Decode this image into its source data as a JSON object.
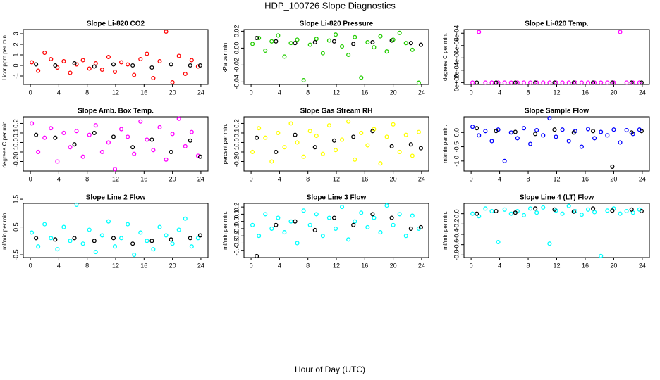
{
  "title": "HDP_100726  Slope Diagnostics",
  "x_label": "Hour of Day (UTC)",
  "chart_data": [
    {
      "type": "scatter",
      "title": "Slope Li-820 CO2",
      "y_label": "Licor ppm per min.",
      "xlim": [
        -1,
        25
      ],
      "xticks": [
        0,
        4,
        8,
        12,
        16,
        20,
        24
      ],
      "ylim": [
        -1.8,
        3.4
      ],
      "yticks": [
        -1,
        0,
        1,
        2,
        3
      ],
      "series": [
        {
          "color": "#ff0000",
          "x": [
            0.2,
            1.1,
            2.0,
            2.9,
            3.8,
            4.7,
            5.6,
            6.5,
            7.4,
            8.3,
            9.2,
            10.1,
            11.0,
            11.9,
            12.8,
            13.7,
            14.6,
            15.5,
            16.4,
            17.3,
            18.2,
            19.1,
            20.0,
            20.9,
            21.8,
            22.7,
            23.6
          ],
          "values": [
            0.3,
            -0.5,
            1.2,
            0.6,
            -0.2,
            0.4,
            -0.7,
            0.1,
            0.5,
            -0.3,
            0.2,
            -0.4,
            0.8,
            -0.6,
            0.3,
            0.1,
            -0.9,
            0.6,
            1.1,
            -1.2,
            0.4,
            3.2,
            -1.6,
            0.9,
            -0.8,
            0.5,
            -0.1
          ]
        },
        {
          "color": "#000000",
          "x": [
            0.8,
            3.5,
            6.2,
            9.0,
            11.7,
            14.4,
            17.1,
            19.8,
            22.5,
            23.9
          ],
          "values": [
            0.1,
            0.0,
            0.2,
            -0.1,
            0.1,
            0.0,
            -0.2,
            0.1,
            0.0,
            0.0
          ]
        }
      ]
    },
    {
      "type": "scatter",
      "title": "Slope Li-820 Pressure",
      "y_label": "kPa per min.",
      "xlim": [
        -1,
        25
      ],
      "xticks": [
        0,
        4,
        8,
        12,
        16,
        20,
        24
      ],
      "ylim": [
        -0.043,
        0.022
      ],
      "yticks": [
        -0.04,
        -0.02,
        {
          "value": 0,
          "label": "0.00"
        },
        0.02
      ],
      "series": [
        {
          "color": "#22cc00",
          "x": [
            0.2,
            1.1,
            2.0,
            2.9,
            3.8,
            4.7,
            5.6,
            6.5,
            7.4,
            8.3,
            9.2,
            10.1,
            11.0,
            11.9,
            12.8,
            13.7,
            14.6,
            15.5,
            16.4,
            17.3,
            18.2,
            19.1,
            20.0,
            20.9,
            21.8,
            22.7,
            23.6
          ],
          "values": [
            0.005,
            0.012,
            -0.003,
            0.008,
            0.015,
            -0.01,
            0.006,
            0.01,
            -0.038,
            0.004,
            0.011,
            -0.006,
            0.009,
            0.016,
            0.002,
            -0.008,
            0.013,
            -0.035,
            0.007,
            0.001,
            0.014,
            -0.004,
            0.01,
            0.018,
            0.006,
            -0.002,
            -0.041
          ]
        },
        {
          "color": "#000000",
          "x": [
            0.8,
            3.5,
            6.2,
            9.0,
            11.7,
            14.4,
            17.1,
            19.8,
            22.5,
            23.9
          ],
          "values": [
            0.012,
            0.008,
            0.006,
            0.007,
            0.008,
            0.005,
            0.007,
            0.009,
            0.006,
            0.004
          ]
        }
      ]
    },
    {
      "type": "scatter",
      "title": "Slope Li-820 Temp.",
      "y_label": "degrees C per min.",
      "xlim": [
        -1,
        25
      ],
      "xticks": [
        0,
        4,
        8,
        12,
        16,
        20,
        24
      ],
      "ylim": [
        -3e-05,
        0.00086
      ],
      "yticks": [
        {
          "value": 0,
          "label": "0e+00"
        },
        {
          "value": 0.0002,
          "label": "2e-04"
        },
        {
          "value": 0.0004,
          "label": "4e-04"
        },
        {
          "value": 0.0006,
          "label": "6e-04"
        },
        {
          "value": 0.0008,
          "label": "8e-04"
        }
      ],
      "series": [
        {
          "color": "#ff00ff",
          "x": [
            0.2,
            1.1,
            2.0,
            2.9,
            3.8,
            4.7,
            5.6,
            6.5,
            7.4,
            8.3,
            9.2,
            10.1,
            11.0,
            11.9,
            12.8,
            13.7,
            14.6,
            15.5,
            16.4,
            17.3,
            18.2,
            19.1,
            20.0,
            20.9,
            21.8,
            22.7,
            23.6
          ],
          "values": [
            0,
            0.00082,
            0,
            0,
            0,
            0,
            0,
            0,
            0,
            0,
            0,
            0,
            0,
            0,
            0,
            0,
            0,
            0,
            0,
            0,
            0,
            0,
            0,
            0.00082,
            0,
            0,
            0
          ]
        },
        {
          "color": "#000000",
          "x": [
            0.8,
            3.5,
            6.2,
            9.0,
            11.7,
            14.4,
            17.1,
            19.8,
            22.5,
            23.9
          ],
          "values": [
            0,
            0,
            0,
            0,
            0,
            0,
            0,
            0,
            0,
            0
          ]
        }
      ]
    },
    {
      "type": "scatter",
      "title": "Slope Amb. Box Temp.",
      "y_label": "degrees C per min.",
      "xlim": [
        -1,
        25
      ],
      "xticks": [
        0,
        4,
        8,
        12,
        16,
        20,
        24
      ],
      "ylim": [
        -0.3,
        0.27
      ],
      "yticks": [
        -0.2,
        -0.1,
        {
          "value": 0,
          "label": "0.0"
        },
        0.1,
        0.2
      ],
      "series": [
        {
          "color": "#ff00ff",
          "x": [
            0.2,
            1.1,
            2.0,
            2.9,
            3.8,
            4.7,
            5.6,
            6.5,
            7.4,
            8.3,
            9.2,
            10.1,
            11.0,
            11.9,
            12.8,
            13.7,
            14.6,
            15.5,
            16.4,
            17.3,
            18.2,
            19.1,
            20.0,
            20.9,
            21.8,
            22.7,
            23.6
          ],
          "values": [
            0.2,
            -0.1,
            0.05,
            0.15,
            -0.2,
            0.1,
            -0.05,
            0.12,
            -0.15,
            0.08,
            0.18,
            -0.1,
            0.0,
            -0.28,
            0.14,
            0.06,
            -0.12,
            0.22,
            0.03,
            -0.08,
            0.16,
            -0.18,
            0.09,
            0.25,
            -0.04,
            0.11,
            -0.14
          ]
        },
        {
          "color": "#000000",
          "x": [
            0.8,
            3.5,
            6.2,
            9.0,
            11.7,
            14.4,
            17.1,
            19.8,
            22.5,
            23.9
          ],
          "values": [
            0.08,
            0.05,
            -0.02,
            0.1,
            0.06,
            -0.05,
            0.03,
            -0.1,
            0.02,
            -0.15
          ]
        }
      ]
    },
    {
      "type": "scatter",
      "title": "Slope Gas Stream RH",
      "y_label": "percent per min.",
      "xlim": [
        -1,
        25
      ],
      "xticks": [
        0,
        4,
        8,
        12,
        16,
        20,
        24
      ],
      "ylim": [
        -0.3,
        0.27
      ],
      "yticks": [
        -0.2,
        -0.1,
        {
          "value": 0,
          "label": "0.0"
        },
        0.1,
        0.2
      ],
      "series": [
        {
          "color": "#ffff00",
          "x": [
            0.2,
            1.1,
            2.0,
            2.9,
            3.8,
            4.7,
            5.6,
            6.5,
            7.4,
            8.3,
            9.2,
            10.1,
            11.0,
            11.9,
            12.8,
            13.7,
            14.6,
            15.5,
            16.4,
            17.3,
            18.2,
            19.1,
            20.0,
            20.9,
            21.8,
            22.7,
            23.6
          ],
          "values": [
            -0.1,
            0.15,
            0.05,
            -0.2,
            0.1,
            -0.05,
            0.2,
            0.0,
            -0.15,
            0.12,
            0.07,
            -0.12,
            0.18,
            -0.08,
            0.03,
            0.22,
            -0.18,
            0.1,
            -0.03,
            0.14,
            -0.22,
            0.06,
            0.19,
            -0.1,
            0.08,
            -0.14,
            0.11
          ]
        },
        {
          "color": "#000000",
          "x": [
            0.8,
            3.5,
            6.2,
            9.0,
            11.7,
            14.4,
            17.1,
            19.8,
            22.5,
            23.9
          ],
          "values": [
            0.05,
            -0.1,
            0.08,
            -0.05,
            0.02,
            0.06,
            0.12,
            -0.04,
            -0.02,
            -0.06
          ]
        }
      ]
    },
    {
      "type": "scatter",
      "title": "Slope Sample Flow",
      "y_label": "ml/min per min.",
      "xlim": [
        -1,
        25
      ],
      "xticks": [
        0,
        4,
        8,
        12,
        16,
        20,
        24
      ],
      "ylim": [
        -1.35,
        0.55
      ],
      "yticks": [
        {
          "value": -1,
          "label": "-1.0"
        },
        -0.5,
        {
          "value": 0,
          "label": "0.0"
        }
      ],
      "series": [
        {
          "color": "#0000ff",
          "x": [
            0.2,
            1.1,
            2.0,
            2.9,
            3.8,
            4.7,
            5.6,
            6.5,
            7.4,
            8.3,
            9.2,
            10.1,
            11.0,
            11.9,
            12.8,
            13.7,
            14.6,
            15.5,
            16.4,
            17.3,
            18.2,
            19.1,
            20.0,
            20.9,
            21.8,
            22.7,
            23.6
          ],
          "values": [
            0.2,
            -0.1,
            0.05,
            -0.3,
            0.1,
            -1.0,
            0.0,
            -0.2,
            0.15,
            -0.4,
            0.08,
            -0.1,
            0.5,
            -0.15,
            0.1,
            -0.3,
            0.05,
            -0.5,
            0.12,
            -0.2,
            0.02,
            -0.1,
            0.1,
            -0.35,
            0.08,
            -0.05,
            0.1
          ]
        },
        {
          "color": "#000000",
          "x": [
            0.8,
            3.5,
            6.2,
            9.0,
            11.7,
            14.4,
            17.1,
            19.8,
            22.5,
            23.9
          ],
          "values": [
            0.15,
            0.05,
            0.02,
            -0.05,
            0.1,
            0.0,
            0.05,
            -1.2,
            0.0,
            0.05
          ]
        }
      ]
    },
    {
      "type": "scatter",
      "title": "Slope Line 2 Flow",
      "y_label": "ml/min per min.",
      "xlim": [
        -1,
        25
      ],
      "xticks": [
        0,
        4,
        8,
        12,
        16,
        20,
        24
      ],
      "ylim": [
        -0.6,
        1.35
      ],
      "yticks": [
        -0.5,
        0.5,
        1.5
      ],
      "series": [
        {
          "color": "#00ffff",
          "x": [
            0.2,
            1.1,
            2.0,
            2.9,
            3.8,
            4.7,
            5.6,
            6.5,
            7.4,
            8.3,
            9.2,
            10.1,
            11.0,
            11.9,
            12.8,
            13.7,
            14.6,
            15.5,
            16.4,
            17.3,
            18.2,
            19.1,
            20.0,
            20.9,
            21.8,
            22.7,
            23.6
          ],
          "values": [
            0.3,
            -0.2,
            0.6,
            0.1,
            -0.3,
            0.5,
            0.0,
            1.3,
            -0.1,
            0.4,
            -0.4,
            0.2,
            0.7,
            -0.2,
            0.1,
            0.6,
            -0.5,
            0.3,
            0.0,
            -0.3,
            0.5,
            0.2,
            -0.1,
            0.4,
            0.8,
            -0.2,
            0.1
          ]
        },
        {
          "color": "#000000",
          "x": [
            0.8,
            3.5,
            6.2,
            9.0,
            11.7,
            14.4,
            17.1,
            19.8,
            22.5,
            23.9
          ],
          "values": [
            0.1,
            0.05,
            0.1,
            0.0,
            0.1,
            -0.1,
            0.0,
            0.05,
            0.1,
            0.2
          ]
        }
      ]
    },
    {
      "type": "scatter",
      "title": "Slope Line 3 Flow",
      "y_label": "ml/min per min.",
      "xlim": [
        -1,
        25
      ],
      "xticks": [
        0,
        4,
        8,
        12,
        16,
        20,
        24
      ],
      "ylim": [
        -0.5,
        0.25
      ],
      "yticks": [
        -0.4,
        -0.3,
        -0.2,
        -0.1,
        {
          "value": 0,
          "label": "0.0"
        },
        0.1,
        0.2
      ],
      "series": [
        {
          "color": "#00ffff",
          "x": [
            0.2,
            1.1,
            2.0,
            2.9,
            3.8,
            4.7,
            5.6,
            6.5,
            7.4,
            8.3,
            9.2,
            10.1,
            11.0,
            11.9,
            12.8,
            13.7,
            14.6,
            15.5,
            16.4,
            17.3,
            18.2,
            19.1,
            20.0,
            20.9,
            21.8,
            22.7,
            23.6
          ],
          "values": [
            -0.05,
            -0.2,
            0.1,
            -0.1,
            0.05,
            -0.15,
            0.0,
            -0.3,
            0.15,
            -0.05,
            0.1,
            -0.2,
            0.05,
            -0.1,
            0.2,
            -0.25,
            0.0,
            0.12,
            -0.08,
            0.05,
            -0.15,
            0.22,
            -0.05,
            0.1,
            -0.2,
            0.08,
            -0.1
          ]
        },
        {
          "color": "#000000",
          "x": [
            0.8,
            3.5,
            6.2,
            9.0,
            11.7,
            14.4,
            17.1,
            19.8,
            22.5,
            23.9
          ],
          "values": [
            -0.48,
            -0.05,
            0.0,
            -0.12,
            0.05,
            -0.05,
            0.1,
            0.05,
            -0.1,
            -0.08
          ]
        }
      ]
    },
    {
      "type": "scatter",
      "title": "Slope Line 4 (LT) Flow",
      "y_label": "ml/min per min.",
      "xlim": [
        -1,
        25
      ],
      "xticks": [
        0,
        4,
        8,
        12,
        16,
        20,
        24
      ],
      "ylim": [
        -0.85,
        0.2
      ],
      "yticks": [
        -0.8,
        -0.6,
        -0.4,
        -0.2,
        {
          "value": 0,
          "label": "0.0"
        }
      ],
      "series": [
        {
          "color": "#00ffff",
          "x": [
            0.2,
            1.1,
            2.0,
            2.9,
            3.8,
            4.7,
            5.6,
            6.5,
            7.4,
            8.3,
            9.2,
            10.1,
            11.0,
            11.9,
            12.8,
            13.7,
            14.6,
            15.5,
            16.4,
            17.3,
            18.2,
            19.1,
            20.0,
            20.9,
            21.8,
            22.7,
            23.6
          ],
          "values": [
            0.0,
            -0.05,
            0.1,
            0.05,
            -0.55,
            0.08,
            0.0,
            0.05,
            -0.03,
            0.1,
            0.02,
            0.12,
            -0.58,
            0.06,
            0.0,
            0.15,
            0.05,
            -0.02,
            0.08,
            0.03,
            -0.82,
            0.06,
            0.1,
            0.0,
            0.05,
            0.02,
            0.08
          ]
        },
        {
          "color": "#000000",
          "x": [
            0.8,
            3.5,
            6.2,
            9.0,
            11.7,
            14.4,
            17.1,
            19.8,
            22.5,
            23.9
          ],
          "values": [
            0.0,
            0.05,
            0.02,
            0.1,
            0.08,
            0.04,
            0.1,
            0.06,
            0.08,
            0.05
          ]
        }
      ]
    }
  ]
}
